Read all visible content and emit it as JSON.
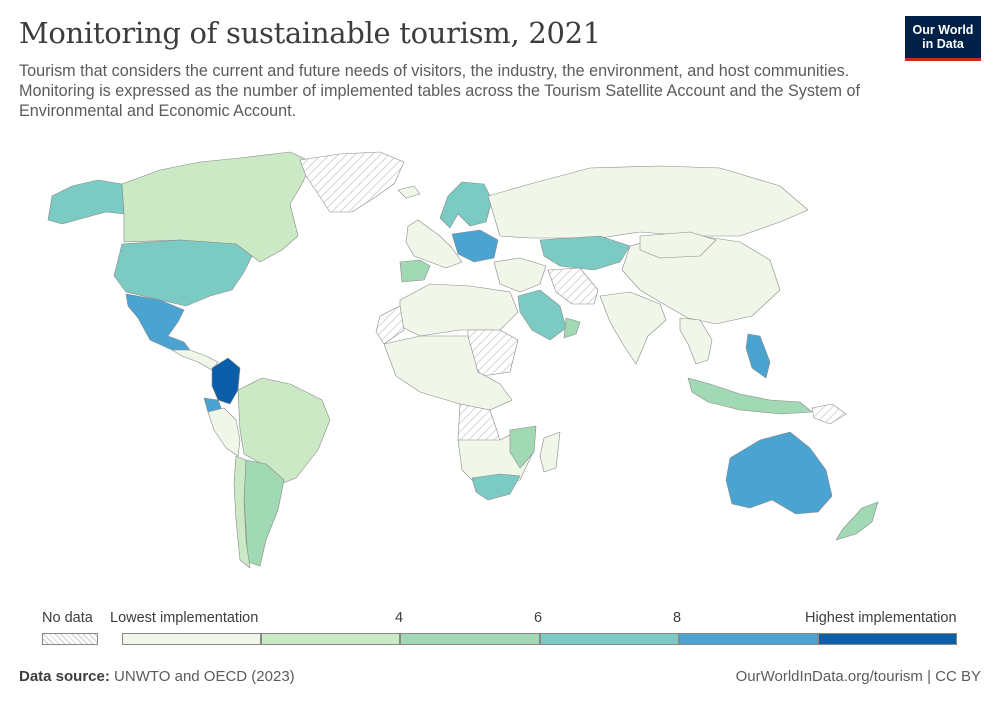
{
  "header": {
    "title": "Monitoring of sustainable tourism, 2021",
    "subtitle": "Tourism that considers the current and future needs of visitors, the industry, the environment, and host communities. Monitoring is expressed as the number of implemented tables across the Tourism Satellite Account and the System of Environmental and Economic Account."
  },
  "logo": {
    "line1": "Our World",
    "line2": "in Data",
    "bg_color": "#002147",
    "accent_color": "#ce261e"
  },
  "legend": {
    "no_data_label": "No data",
    "labels": [
      "Lowest implementation",
      "4",
      "6",
      "8",
      "Highest implementation"
    ],
    "colors": [
      "#f0f7e8",
      "#cbe9c4",
      "#a0d9b3",
      "#7bcbc4",
      "#4aa3d0",
      "#0c5ea8"
    ]
  },
  "footer": {
    "source_label": "Data source:",
    "source_text": "UNWTO and OECD (2023)",
    "right_text": "OurWorldInData.org/tourism | CC BY"
  },
  "map": {
    "type": "choropleth",
    "regions": [
      {
        "name": "Alaska",
        "class": 4
      },
      {
        "name": "Canada",
        "class": 2
      },
      {
        "name": "Greenland",
        "class": "no-data"
      },
      {
        "name": "United States",
        "class": 4
      },
      {
        "name": "Mexico",
        "class": 5
      },
      {
        "name": "Central America",
        "class": 1
      },
      {
        "name": "Colombia",
        "class": 6
      },
      {
        "name": "Ecuador",
        "class": 5
      },
      {
        "name": "Peru",
        "class": 1
      },
      {
        "name": "Brazil",
        "class": 2
      },
      {
        "name": "Argentina",
        "class": 3
      },
      {
        "name": "Chile",
        "class": 2
      },
      {
        "name": "Iceland",
        "class": 1
      },
      {
        "name": "Scandinavia",
        "class": 4
      },
      {
        "name": "Western Europe",
        "class": 1
      },
      {
        "name": "Iberia",
        "class": 3
      },
      {
        "name": "Central Europe",
        "class": 5
      },
      {
        "name": "Russia",
        "class": 1
      },
      {
        "name": "Kazakhstan",
        "class": 4
      },
      {
        "name": "Middle East",
        "class": 1
      },
      {
        "name": "Saudi Arabia",
        "class": 4
      },
      {
        "name": "Oman",
        "class": 3
      },
      {
        "name": "Iran",
        "class": "no-data"
      },
      {
        "name": "China",
        "class": 1
      },
      {
        "name": "Mongolia",
        "class": 1
      },
      {
        "name": "India",
        "class": 1
      },
      {
        "name": "Southeast Asia",
        "class": 1
      },
      {
        "name": "Philippines",
        "class": 5
      },
      {
        "name": "Indonesia",
        "class": 3
      },
      {
        "name": "Australia",
        "class": 5
      },
      {
        "name": "New Zealand",
        "class": 3
      },
      {
        "name": "Papua New Guinea",
        "class": "no-data"
      },
      {
        "name": "North Africa",
        "class": 1
      },
      {
        "name": "Western Sahara",
        "class": "no-data"
      },
      {
        "name": "Sudan",
        "class": "no-data"
      },
      {
        "name": "Central Africa",
        "class": 1
      },
      {
        "name": "DR Congo",
        "class": "no-data"
      },
      {
        "name": "Southern Africa",
        "class": 1
      },
      {
        "name": "South Africa",
        "class": 4
      },
      {
        "name": "Mozambique",
        "class": 3
      },
      {
        "name": "Madagascar",
        "class": 1
      }
    ]
  }
}
